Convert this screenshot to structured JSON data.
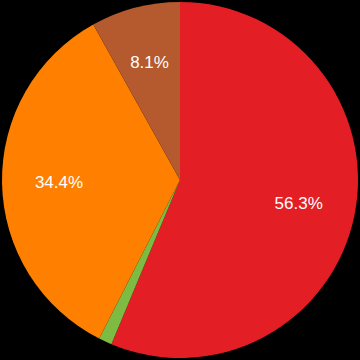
{
  "chart_data": {
    "type": "pie",
    "values": [
      56.3,
      1.2,
      34.4,
      8.1
    ],
    "value_labels": [
      "56.3%",
      null,
      "34.4%",
      "8.1%"
    ],
    "colors": [
      "#e31e24",
      "#7dbb42",
      "#ff8000",
      "#b55a2e"
    ],
    "data_labels": true
  }
}
